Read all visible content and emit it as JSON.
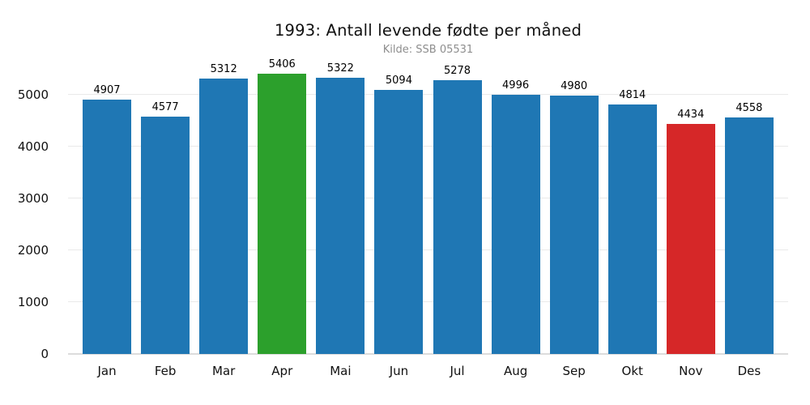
{
  "chart_data": {
    "type": "bar",
    "title": "1993: Antall levende fødte per måned",
    "subtitle": "Kilde: SSB 05531",
    "categories": [
      "Jan",
      "Feb",
      "Mar",
      "Apr",
      "Mai",
      "Jun",
      "Jul",
      "Aug",
      "Sep",
      "Okt",
      "Nov",
      "Des"
    ],
    "values": [
      4907,
      4577,
      5312,
      5406,
      5322,
      5094,
      5278,
      4996,
      4980,
      4814,
      4434,
      4558
    ],
    "bar_colors": [
      "#1f77b4",
      "#1f77b4",
      "#1f77b4",
      "#2ca02c",
      "#1f77b4",
      "#1f77b4",
      "#1f77b4",
      "#1f77b4",
      "#1f77b4",
      "#1f77b4",
      "#d62728",
      "#1f77b4"
    ],
    "highlight": {
      "max_month": "Apr",
      "max_value": 5406,
      "max_color": "#2ca02c",
      "min_month": "Nov",
      "min_value": 4434,
      "min_color": "#d62728",
      "default_color": "#1f77b4"
    },
    "xlabel": "",
    "ylabel": "",
    "yticks": [
      0,
      1000,
      2000,
      3000,
      4000,
      5000
    ],
    "ylim": [
      0,
      5656
    ],
    "grid": "horizontal",
    "legend": null,
    "colors": {
      "background": "#ffffff",
      "gridline": "#e9e9e9",
      "baseline": "#dcdcdc",
      "title_text": "#111111",
      "subtitle_text": "#8e8e8e",
      "tick_text": "#111111",
      "value_label_text": "#000000"
    }
  }
}
